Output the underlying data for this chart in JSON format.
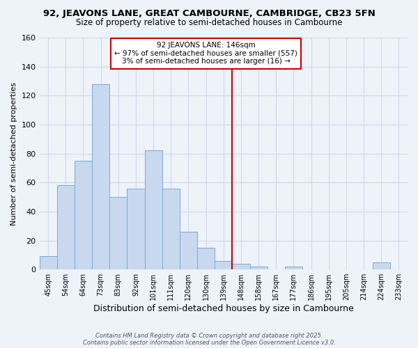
{
  "title": "92, JEAVONS LANE, GREAT CAMBOURNE, CAMBRIDGE, CB23 5FN",
  "subtitle": "Size of property relative to semi-detached houses in Cambourne",
  "xlabel": "Distribution of semi-detached houses by size in Cambourne",
  "ylabel": "Number of semi-detached properties",
  "bin_labels": [
    "45sqm",
    "54sqm",
    "64sqm",
    "73sqm",
    "83sqm",
    "92sqm",
    "101sqm",
    "111sqm",
    "120sqm",
    "130sqm",
    "139sqm",
    "148sqm",
    "158sqm",
    "167sqm",
    "177sqm",
    "186sqm",
    "195sqm",
    "205sqm",
    "214sqm",
    "224sqm",
    "233sqm"
  ],
  "counts": [
    9,
    58,
    75,
    128,
    50,
    56,
    82,
    56,
    26,
    15,
    6,
    4,
    2,
    0,
    2,
    0,
    0,
    0,
    0,
    5,
    0
  ],
  "bar_color": "#c8d8ee",
  "bar_edge_color": "#7baad4",
  "vline_index": 11,
  "vline_color": "#cc0000",
  "annotation_title": "92 JEAVONS LANE: 146sqm",
  "annotation_line1": "← 97% of semi-detached houses are smaller (557)",
  "annotation_line2": "3% of semi-detached houses are larger (16) →",
  "annotation_box_color": "white",
  "annotation_box_edge": "#cc0000",
  "ylim": [
    0,
    160
  ],
  "yticks": [
    0,
    20,
    40,
    60,
    80,
    100,
    120,
    140,
    160
  ],
  "footer1": "Contains HM Land Registry data © Crown copyright and database right 2025.",
  "footer2": "Contains public sector information licensed under the Open Government Licence v3.0.",
  "bg_color": "#eef2f9",
  "grid_color": "#d0daea"
}
